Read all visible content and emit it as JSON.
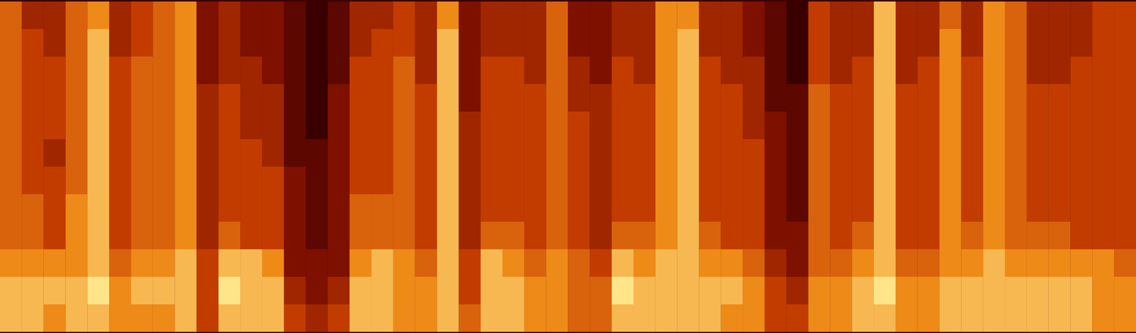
{
  "chart_data": {
    "type": "heatmap",
    "tick_labels": false,
    "cells": [
      [
        6,
        6,
        6,
        6,
        6,
        6,
        6,
        6,
        6,
        7,
        8,
        8
      ],
      [
        4,
        5,
        5,
        5,
        5,
        5,
        5,
        6,
        6,
        7,
        8,
        8
      ],
      [
        4,
        4,
        5,
        5,
        5,
        4,
        5,
        5,
        5,
        7,
        8,
        7
      ],
      [
        6,
        6,
        6,
        6,
        6,
        6,
        6,
        7,
        7,
        7,
        8,
        8
      ],
      [
        7,
        8,
        8,
        8,
        8,
        8,
        8,
        8,
        8,
        8,
        9,
        8
      ],
      [
        4,
        4,
        5,
        5,
        5,
        5,
        5,
        5,
        5,
        6,
        7,
        7
      ],
      [
        5,
        5,
        6,
        6,
        6,
        6,
        6,
        6,
        6,
        7,
        8,
        7
      ],
      [
        6,
        6,
        6,
        6,
        6,
        6,
        6,
        6,
        6,
        7,
        8,
        7
      ],
      [
        7,
        7,
        7,
        7,
        7,
        7,
        7,
        7,
        7,
        8,
        8,
        8
      ],
      [
        3,
        3,
        3,
        4,
        4,
        4,
        4,
        4,
        4,
        5,
        5,
        5
      ],
      [
        4,
        4,
        4,
        5,
        5,
        5,
        5,
        5,
        6,
        8,
        9,
        8
      ],
      [
        3,
        3,
        4,
        4,
        4,
        5,
        5,
        5,
        5,
        8,
        8,
        8
      ],
      [
        3,
        3,
        3,
        4,
        4,
        4,
        5,
        5,
        5,
        7,
        8,
        8
      ],
      [
        2,
        2,
        2,
        2,
        2,
        2,
        3,
        3,
        3,
        3,
        4,
        5
      ],
      [
        1,
        1,
        1,
        1,
        1,
        2,
        2,
        2,
        2,
        3,
        3,
        4
      ],
      [
        2,
        2,
        2,
        3,
        3,
        3,
        3,
        3,
        3,
        3,
        4,
        5
      ],
      [
        4,
        4,
        5,
        5,
        5,
        5,
        5,
        6,
        6,
        7,
        8,
        8
      ],
      [
        4,
        5,
        5,
        5,
        5,
        5,
        5,
        6,
        6,
        8,
        8,
        8
      ],
      [
        5,
        5,
        6,
        6,
        6,
        6,
        6,
        6,
        6,
        7,
        7,
        7
      ],
      [
        4,
        4,
        4,
        5,
        5,
        5,
        5,
        5,
        5,
        6,
        7,
        7
      ],
      [
        7,
        8,
        8,
        8,
        8,
        8,
        8,
        8,
        8,
        8,
        8,
        8
      ],
      [
        3,
        3,
        3,
        3,
        4,
        4,
        4,
        4,
        4,
        5,
        5,
        6
      ],
      [
        4,
        4,
        5,
        5,
        5,
        5,
        5,
        5,
        6,
        8,
        8,
        8
      ],
      [
        4,
        4,
        5,
        5,
        5,
        5,
        5,
        5,
        6,
        7,
        8,
        8
      ],
      [
        4,
        4,
        4,
        5,
        5,
        5,
        5,
        5,
        5,
        6,
        7,
        7
      ],
      [
        6,
        6,
        6,
        6,
        6,
        6,
        6,
        6,
        6,
        7,
        7,
        7
      ],
      [
        3,
        3,
        4,
        4,
        5,
        5,
        5,
        5,
        5,
        6,
        6,
        6
      ],
      [
        3,
        3,
        3,
        4,
        4,
        4,
        4,
        4,
        4,
        5,
        6,
        6
      ],
      [
        4,
        4,
        5,
        5,
        5,
        5,
        5,
        5,
        6,
        8,
        9,
        8
      ],
      [
        4,
        4,
        4,
        5,
        5,
        5,
        5,
        5,
        6,
        7,
        8,
        8
      ],
      [
        7,
        7,
        7,
        7,
        7,
        7,
        7,
        7,
        7,
        8,
        8,
        8
      ],
      [
        7,
        8,
        8,
        8,
        8,
        8,
        8,
        8,
        8,
        8,
        8,
        8
      ],
      [
        4,
        4,
        5,
        5,
        5,
        5,
        5,
        5,
        6,
        7,
        8,
        8
      ],
      [
        4,
        4,
        4,
        5,
        5,
        5,
        5,
        5,
        5,
        7,
        8,
        7
      ],
      [
        3,
        3,
        4,
        4,
        4,
        5,
        5,
        5,
        5,
        6,
        7,
        7
      ],
      [
        2,
        2,
        2,
        2,
        3,
        3,
        3,
        3,
        3,
        4,
        5,
        5
      ],
      [
        1,
        1,
        1,
        2,
        2,
        2,
        2,
        2,
        3,
        3,
        4,
        5
      ],
      [
        5,
        5,
        5,
        6,
        6,
        6,
        6,
        6,
        6,
        6,
        7,
        7
      ],
      [
        4,
        4,
        4,
        5,
        5,
        5,
        5,
        5,
        5,
        6,
        7,
        7
      ],
      [
        4,
        4,
        5,
        5,
        5,
        5,
        5,
        5,
        6,
        7,
        8,
        8
      ],
      [
        8,
        8,
        8,
        8,
        8,
        8,
        8,
        8,
        8,
        8,
        9,
        8
      ],
      [
        4,
        4,
        4,
        5,
        5,
        5,
        5,
        5,
        5,
        6,
        7,
        7
      ],
      [
        4,
        4,
        5,
        5,
        5,
        5,
        5,
        5,
        5,
        6,
        7,
        7
      ],
      [
        6,
        7,
        7,
        7,
        7,
        7,
        7,
        7,
        7,
        7,
        8,
        8
      ],
      [
        4,
        4,
        5,
        5,
        5,
        5,
        5,
        5,
        6,
        7,
        8,
        8
      ],
      [
        7,
        7,
        7,
        7,
        7,
        7,
        7,
        7,
        7,
        8,
        8,
        8
      ],
      [
        6,
        6,
        6,
        6,
        6,
        6,
        6,
        6,
        6,
        7,
        8,
        8
      ],
      [
        4,
        4,
        4,
        5,
        5,
        5,
        5,
        5,
        6,
        7,
        8,
        8
      ],
      [
        4,
        4,
        4,
        5,
        5,
        5,
        5,
        5,
        6,
        7,
        8,
        8
      ],
      [
        4,
        4,
        5,
        5,
        5,
        5,
        5,
        5,
        5,
        7,
        8,
        8
      ],
      [
        5,
        5,
        5,
        5,
        5,
        5,
        5,
        5,
        5,
        7,
        7,
        7
      ],
      [
        5,
        5,
        5,
        5,
        5,
        5,
        5,
        5,
        5,
        6,
        7,
        7
      ]
    ]
  }
}
